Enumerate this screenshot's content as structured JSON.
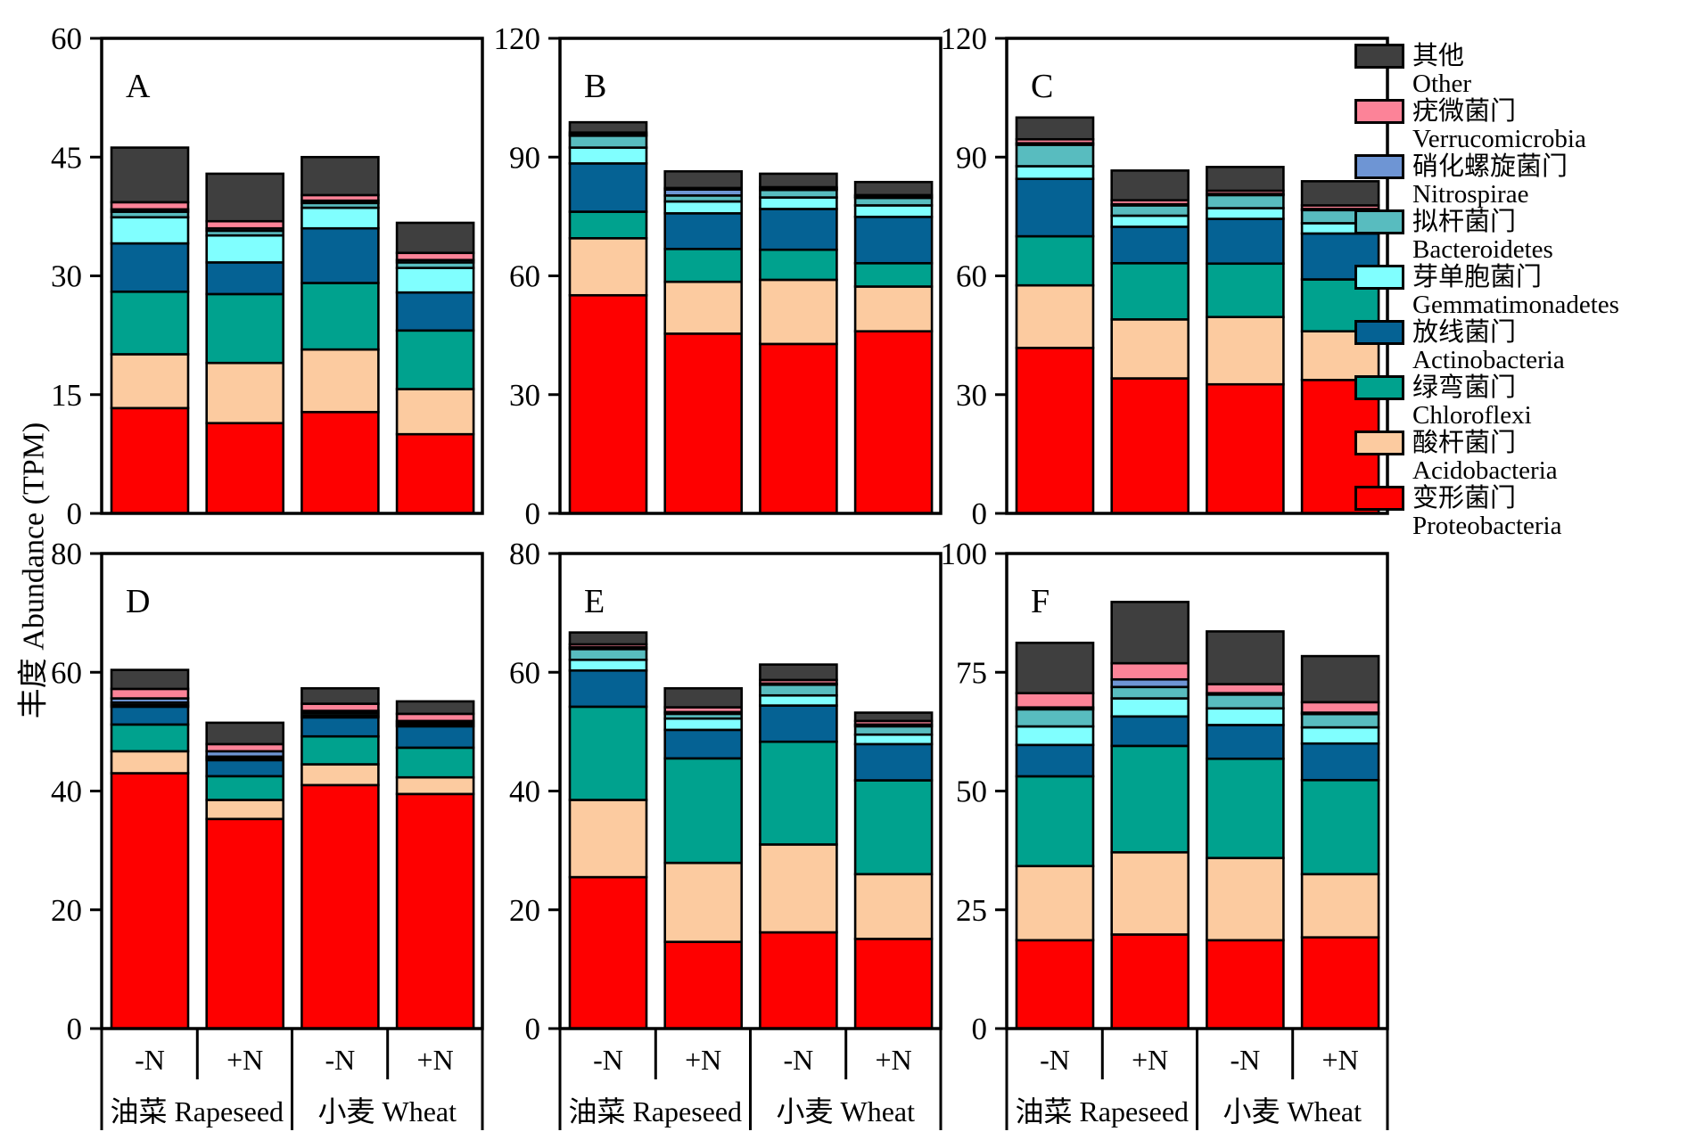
{
  "chart_data": {
    "type": "bar",
    "stacked": true,
    "title": "",
    "ylabel": "丰度 Abundance (TPM)",
    "xlabel": "",
    "grid": false,
    "legend_position": "right",
    "x_categories": [
      "-N",
      "+N",
      "-N",
      "+N"
    ],
    "x_groups": [
      "油菜 Rapeseed",
      "小麦 Wheat"
    ],
    "series": [
      {
        "key": "proteobacteria",
        "label_zh": "变形菌门",
        "label_en": "Proteobacteria",
        "color": "#fe0000"
      },
      {
        "key": "acidobacteria",
        "label_zh": "酸杆菌门",
        "label_en": "Acidobacteria",
        "color": "#fccba0"
      },
      {
        "key": "chloroflexi",
        "label_zh": "绿弯菌门",
        "label_en": "Chloroflexi",
        "color": "#00a28e"
      },
      {
        "key": "actinobacteria",
        "label_zh": "放线菌门",
        "label_en": "Actinobacteria",
        "color": "#056294"
      },
      {
        "key": "gemmatimonadetes",
        "label_zh": "芽单胞菌门",
        "label_en": "Gemmatimonadetes",
        "color": "#80ffff"
      },
      {
        "key": "bacteroidetes",
        "label_zh": "拟杆菌门",
        "label_en": "Bacteroidetes",
        "color": "#58bcbf"
      },
      {
        "key": "nitrospirae",
        "label_zh": "硝化螺旋菌门",
        "label_en": "Nitrospirae",
        "color": "#6e95d4"
      },
      {
        "key": "verrucomicrobia",
        "label_zh": "疣微菌门",
        "label_en": "Verrucomicrobia",
        "color": "#fc8398"
      },
      {
        "key": "other",
        "label_zh": "其他",
        "label_en": "Other",
        "color": "#3f3f3f"
      }
    ],
    "panels": [
      {
        "letter": "A",
        "ymax": 60,
        "yticks": [
          0,
          15,
          30,
          45,
          60
        ],
        "bars": [
          {
            "group": "油菜 Rapeseed",
            "treatment": "-N",
            "values": [
              13.3,
              6.8,
              7.9,
              6.1,
              3.3,
              0.7,
              0.3,
              0.9,
              6.9
            ]
          },
          {
            "group": "油菜 Rapeseed",
            "treatment": "+N",
            "values": [
              11.4,
              7.6,
              8.7,
              4.0,
              3.4,
              0.6,
              0.3,
              0.9,
              6.0
            ]
          },
          {
            "group": "小麦 Wheat",
            "treatment": "-N",
            "values": [
              12.8,
              7.9,
              8.4,
              6.9,
              2.6,
              0.6,
              0.3,
              0.7,
              4.8
            ]
          },
          {
            "group": "小麦 Wheat",
            "treatment": "+N",
            "values": [
              10.0,
              5.7,
              7.4,
              4.8,
              3.1,
              0.7,
              0.3,
              0.9,
              3.8
            ]
          }
        ]
      },
      {
        "letter": "B",
        "ymax": 120,
        "yticks": [
          0,
          30,
          60,
          90,
          120
        ],
        "bars": [
          {
            "group": "油菜 Rapeseed",
            "treatment": "-N",
            "values": [
              55.1,
              14.4,
              6.7,
              12.2,
              4.0,
              3.0,
              0.3,
              0.5,
              2.6
            ]
          },
          {
            "group": "油菜 Rapeseed",
            "treatment": "+N",
            "values": [
              45.4,
              13.1,
              8.3,
              9.0,
              3.0,
              1.5,
              1.5,
              0.4,
              4.2
            ]
          },
          {
            "group": "小麦 Wheat",
            "treatment": "-N",
            "values": [
              42.8,
              16.2,
              7.6,
              10.3,
              2.9,
              1.9,
              0.3,
              0.4,
              3.4
            ]
          },
          {
            "group": "小麦 Wheat",
            "treatment": "+N",
            "values": [
              46.0,
              11.3,
              5.9,
              11.7,
              2.9,
              1.9,
              0.3,
              0.4,
              3.3
            ]
          }
        ]
      },
      {
        "letter": "C",
        "ymax": 120,
        "yticks": [
          0,
          30,
          60,
          90,
          120
        ],
        "bars": [
          {
            "group": "油菜 Rapeseed",
            "treatment": "-N",
            "values": [
              41.8,
              15.8,
              12.4,
              14.5,
              3.2,
              5.4,
              0.4,
              1.0,
              5.5
            ]
          },
          {
            "group": "油菜 Rapeseed",
            "treatment": "+N",
            "values": [
              34.1,
              14.9,
              14.2,
              9.2,
              2.8,
              2.6,
              0.3,
              1.0,
              7.5
            ]
          },
          {
            "group": "小麦 Wheat",
            "treatment": "-N",
            "values": [
              32.6,
              17.0,
              13.5,
              11.3,
              2.7,
              3.3,
              0.3,
              0.8,
              6.0
            ]
          },
          {
            "group": "小麦 Wheat",
            "treatment": "+N",
            "values": [
              33.7,
              12.3,
              13.1,
              11.6,
              2.6,
              3.3,
              0.3,
              0.9,
              6.1
            ]
          }
        ]
      },
      {
        "letter": "D",
        "ymax": 80,
        "yticks": [
          0,
          20,
          40,
          60,
          80
        ],
        "bars": [
          {
            "group": "油菜 Rapeseed",
            "treatment": "-N",
            "values": [
              43.0,
              3.7,
              4.5,
              3.0,
              0.3,
              0.4,
              0.7,
              1.6,
              3.2
            ]
          },
          {
            "group": "油菜 Rapeseed",
            "treatment": "+N",
            "values": [
              35.3,
              3.2,
              4.0,
              2.7,
              0.3,
              0.3,
              0.9,
              1.2,
              3.6
            ]
          },
          {
            "group": "小麦 Wheat",
            "treatment": "-N",
            "values": [
              41.0,
              3.5,
              4.7,
              3.2,
              0.3,
              0.4,
              0.4,
              1.2,
              2.6
            ]
          },
          {
            "group": "小麦 Wheat",
            "treatment": "+N",
            "values": [
              39.5,
              2.8,
              5.0,
              3.6,
              0.3,
              0.3,
              0.3,
              1.2,
              2.1
            ]
          }
        ]
      },
      {
        "letter": "E",
        "ymax": 80,
        "yticks": [
          0,
          20,
          40,
          60,
          80
        ],
        "bars": [
          {
            "group": "油菜 Rapeseed",
            "treatment": "-N",
            "values": [
              25.5,
              13.0,
              15.7,
              6.1,
              1.8,
              1.8,
              0.3,
              0.5,
              2.0
            ]
          },
          {
            "group": "油菜 Rapeseed",
            "treatment": "+N",
            "values": [
              14.6,
              13.3,
              17.6,
              4.8,
              1.9,
              0.8,
              0.3,
              0.8,
              3.2
            ]
          },
          {
            "group": "小麦 Wheat",
            "treatment": "-N",
            "values": [
              16.2,
              14.8,
              17.3,
              6.1,
              1.7,
              1.8,
              0.2,
              0.6,
              2.6
            ]
          },
          {
            "group": "小麦 Wheat",
            "treatment": "+N",
            "values": [
              15.1,
              10.9,
              15.8,
              6.1,
              1.6,
              1.4,
              0.3,
              0.6,
              1.4
            ]
          }
        ]
      },
      {
        "letter": "F",
        "ymax": 100,
        "yticks": [
          0,
          25,
          50,
          75,
          100
        ],
        "bars": [
          {
            "group": "油菜 Rapeseed",
            "treatment": "-N",
            "values": [
              18.6,
              15.6,
              18.9,
              6.6,
              3.9,
              3.6,
              0.4,
              3.0,
              10.6
            ]
          },
          {
            "group": "油菜 Rapeseed",
            "treatment": "+N",
            "values": [
              19.8,
              17.3,
              22.4,
              6.2,
              3.8,
              2.4,
              1.6,
              3.4,
              12.9
            ]
          },
          {
            "group": "小麦 Wheat",
            "treatment": "-N",
            "values": [
              18.6,
              17.3,
              20.9,
              7.1,
              3.5,
              2.9,
              0.3,
              1.9,
              11.1
            ]
          },
          {
            "group": "小麦 Wheat",
            "treatment": "+N",
            "values": [
              19.2,
              13.3,
              19.8,
              7.7,
              3.4,
              2.8,
              0.3,
              2.2,
              9.7
            ]
          }
        ]
      }
    ]
  }
}
